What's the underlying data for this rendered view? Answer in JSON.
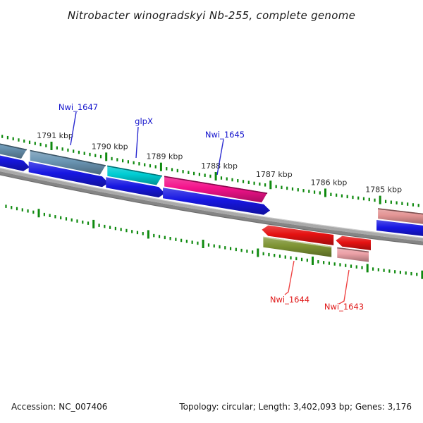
{
  "title": "Nitrobacter winogradskyi Nb-255, complete genome",
  "footer": {
    "accession": "Accession: NC_007406",
    "stats": "Topology: circular; Length: 3,402,093 bp; Genes: 3,176"
  },
  "chart_data": {
    "type": "genome-map",
    "organism": "Nitrobacter winogradskyi Nb-255",
    "topology": "circular",
    "length_bp": "3,402,093",
    "gene_count": "3,176",
    "scale": {
      "unit": "kbp",
      "direction": "coordinates-decrease-rightward",
      "major_ticks_kbp": [
        1791,
        1790,
        1789,
        1788,
        1787,
        1786,
        1785
      ],
      "major_tick_labels": [
        "1791 kbp",
        "1790 kbp",
        "1789 kbp",
        "1788 kbp",
        "1787 kbp",
        "1786 kbp",
        "1785 kbp"
      ],
      "minor_tick_interval_kbp": 0.1
    },
    "strand_colors": {
      "forward": "#1717e2",
      "reverse": "#e51212"
    },
    "label_colors": {
      "forward": "#1212cc",
      "reverse": "#e01818"
    },
    "leader_colors": {
      "forward": "#2a2ad0",
      "reverse": "#ef4545"
    },
    "backbone_colors": {
      "upper": "#a9a9a9",
      "lower": "#858585",
      "top_edge": "#cfcfcf",
      "bottom_edge": "#6e6e6e"
    },
    "tick_color": "#0f8a0f",
    "tick_label_color": "#2a2a2a",
    "genes": [
      {
        "label": "",
        "strand": "+",
        "start_kbp": 1792.4,
        "end_kbp": 1791.45,
        "color": "#6b96b4",
        "edge": "dark"
      },
      {
        "label": "Nwi_1647",
        "strand": "+",
        "start_kbp": 1791.39,
        "end_kbp": 1790.01,
        "color": "#6b96b4",
        "edge": "dark"
      },
      {
        "label": "glpX",
        "strand": "+",
        "start_kbp": 1789.98,
        "end_kbp": 1788.98,
        "color": "#00cdd3",
        "edge": "dark"
      },
      {
        "label": "Nwi_1645",
        "strand": "+",
        "start_kbp": 1788.94,
        "end_kbp": 1787.06,
        "color": "#f3128b",
        "edge": "dark"
      },
      {
        "label": "Nwi_1644",
        "strand": "-",
        "start_kbp": 1787.16,
        "end_kbp": 1785.85,
        "color": "#7e9434",
        "edge": "light"
      },
      {
        "label": "Nwi_1643",
        "strand": "-",
        "start_kbp": 1785.81,
        "end_kbp": 1785.17,
        "color": "#eba0a6",
        "edge": "dark"
      },
      {
        "label": "",
        "strand": "+",
        "start_kbp": 1785.04,
        "end_kbp": 1784.05,
        "color": "#e39494",
        "edge": "dark"
      }
    ]
  }
}
